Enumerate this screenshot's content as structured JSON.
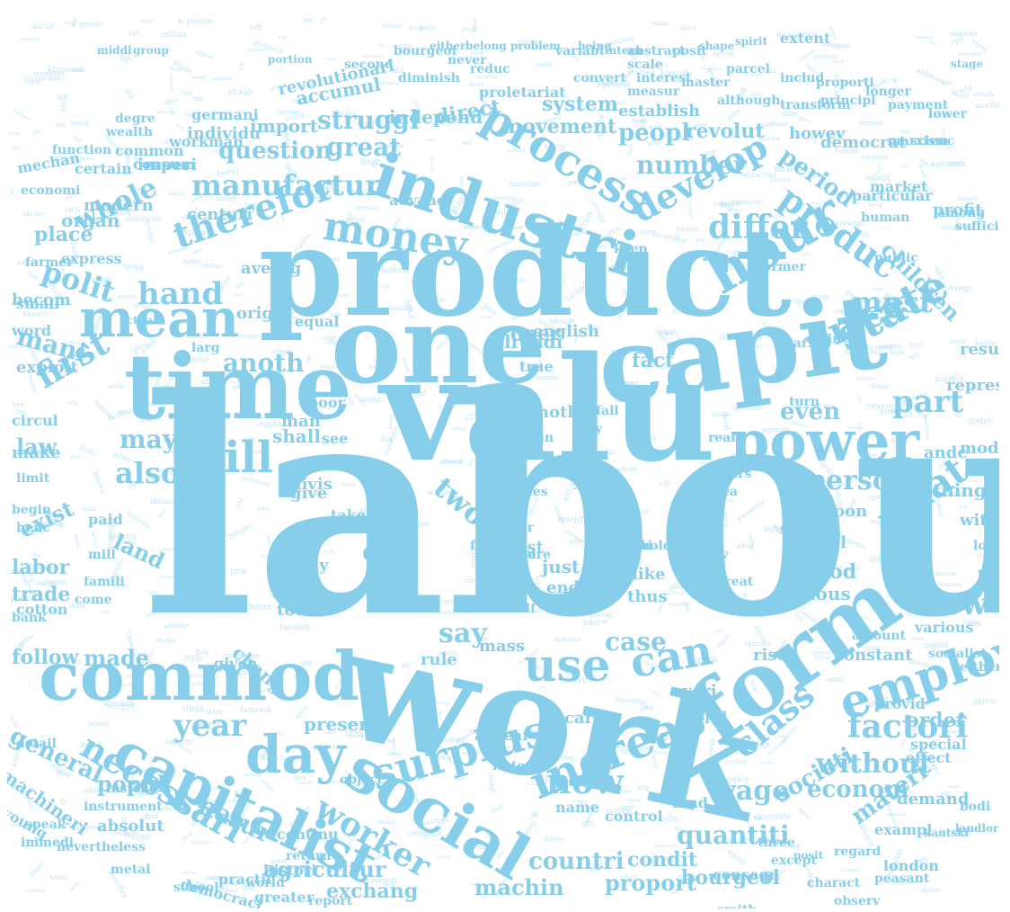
{
  "colors": {
    "word": "#87ceeb",
    "background": "#ffffff"
  },
  "words": [
    "labour",
    "valu",
    "work",
    "product",
    "one",
    "capit",
    "time",
    "commod",
    "form",
    "social",
    "industri",
    "hour",
    "mean",
    "power",
    "capitalist",
    "day",
    "employ",
    "surplus",
    "state",
    "increas",
    "will",
    "price",
    "money",
    "use",
    "can",
    "class",
    "relat",
    "process",
    "develop",
    "worker",
    "therefor",
    "necessari",
    "factori",
    "manufactur",
    "hand",
    "differ",
    "produc",
    "now",
    "new",
    "first",
    "year",
    "part",
    "also",
    "must",
    "person",
    "two",
    "wage",
    "quantiti",
    "without",
    "countri",
    "agricultur",
    "natur",
    "polit",
    "may",
    "anoth",
    "even",
    "say",
    "case",
    "made",
    "old",
    "mani",
    "whole",
    "number",
    "struggl",
    "peopl",
    "great",
    "question",
    "system",
    "period",
    "revolut",
    "econom",
    "materi",
    "societi",
    "machin",
    "proport",
    "exchang",
    "england",
    "bourgeoi",
    "condit",
    "general",
    "popul",
    "machineri",
    "absolut",
    "continu",
    "particular",
    "children",
    "market",
    "exploit",
    "exist",
    "labor",
    "law",
    "land",
    "trade",
    "place",
    "organ",
    "modern",
    "becom",
    "fact",
    "oper",
    "english",
    "shall",
    "man",
    "poor",
    "divis",
    "give",
    "less",
    "way",
    "half",
    "total",
    "chang",
    "given",
    "follow",
    "order",
    "constant",
    "democrat",
    "establish",
    "movement",
    "independ",
    "accumul",
    "import",
    "individu",
    "imperi",
    "centuri",
    "averag",
    "origin",
    "equal",
    "larg",
    "true",
    "noth",
    "alreadi",
    "act",
    "see",
    "take",
    "last",
    "just",
    "end",
    "call",
    "free",
    "like",
    "thus",
    "good",
    "hous",
    "articl",
    "sum",
    "soon",
    "thing",
    "within",
    "andc",
    "result",
    "repres",
    "mode",
    "profit",
    "rise",
    "everi",
    "mass",
    "rule",
    "present",
    "carri",
    "direct",
    "howev",
    "demand",
    "exampl",
    "london",
    "consequ",
    "practic",
    "greater",
    "whose",
    "govern",
    "manner",
    "extent",
    "revolutionari",
    "proletariat",
    "germani",
    "workman",
    "common",
    "degre",
    "wealth",
    "certain",
    "mechan",
    "economi",
    "consum",
    "function",
    "advanc",
    "express",
    "actual",
    "farmer",
    "small",
    "word",
    "circul",
    "make",
    "limit",
    "begin",
    "henc",
    "paid",
    "mill",
    "famili",
    "come",
    "bank",
    "cotton",
    "detail",
    "instead",
    "instrument",
    "young",
    "speak",
    "immedi",
    "nevertheless",
    "metal",
    "school",
    "understand",
    "complet",
    "report",
    "world",
    "democraci",
    "histori",
    "return",
    "kind",
    "name",
    "control",
    "latter",
    "appear",
    "object",
    "regard",
    "peasant",
    "except",
    "charact",
    "smith",
    "observ",
    "sourc",
    "three",
    "provid",
    "special",
    "effect",
    "rapid",
    "view",
    "amount",
    "various",
    "socialist",
    "either",
    "prove",
    "long",
    "former",
    "keep",
    "coloni",
    "stand",
    "point",
    "marx",
    "sinc",
    "turn",
    "cours",
    "idea",
    "real",
    "right",
    "creat",
    "lbs",
    "fix",
    "ger",
    "men",
    "yet",
    "spin",
    "play",
    "fall",
    "des",
    "mere",
    "gold",
    "self",
    "hold",
    "activ",
    "quit",
    "well",
    "public",
    "human",
    "suffici",
    "among",
    "principl",
    "marxism",
    "scienc",
    "payment",
    "lower",
    "longer",
    "transform",
    "although",
    "master",
    "interest",
    "convert",
    "measur",
    "diminish",
    "second",
    "reduc",
    "never",
    "variabl",
    "abstract",
    "posit",
    "scale",
    "parcel",
    "includ",
    "proporti",
    "bourgeoi",
    "posit",
    "kautski",
    "landlord",
    "bodi",
    "spirit",
    "stage",
    "portion",
    "either",
    "belong",
    "problem",
    "being",
    "intern",
    "shape",
    "middl",
    "group"
  ]
}
